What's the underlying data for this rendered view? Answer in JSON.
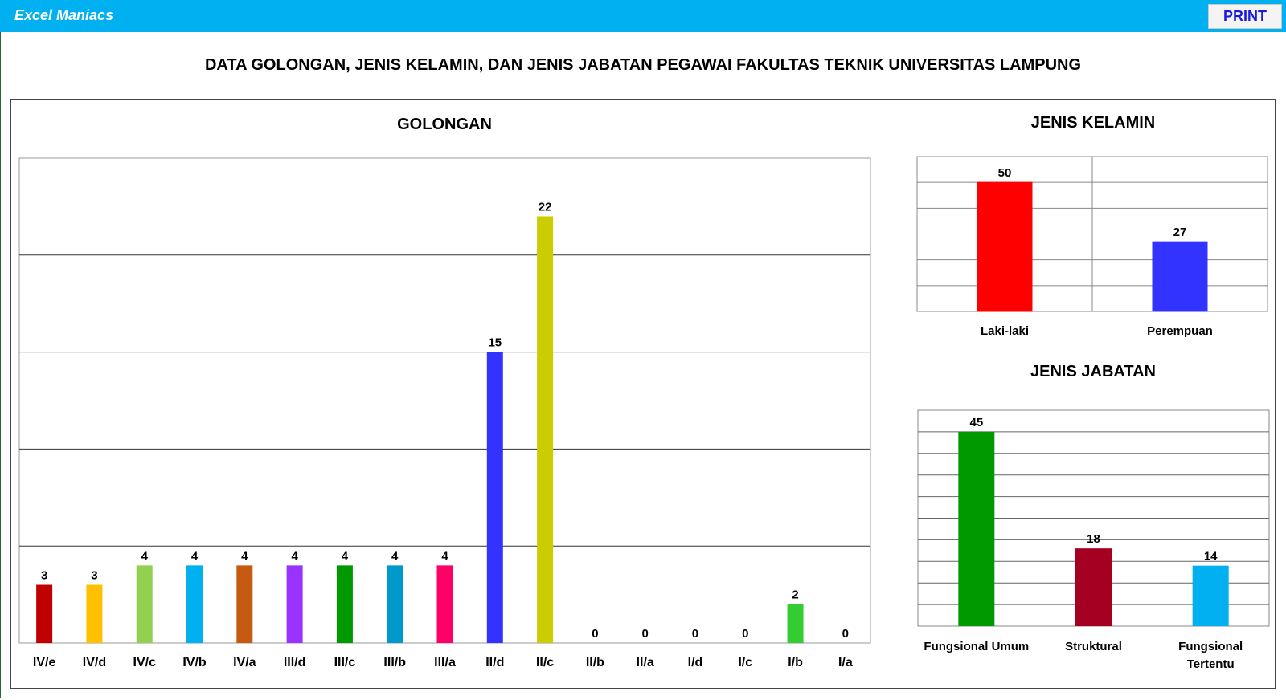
{
  "app": {
    "title": "Excel Maniacs",
    "print_label": "PRINT"
  },
  "page_title": "DATA GOLONGAN, JENIS KELAMIN, DAN JENIS JABATAN PEGAWAI FAKULTAS TEKNIK UNIVERSITAS LAMPUNG",
  "chart_data": [
    {
      "type": "bar",
      "title": "GOLONGAN",
      "categories": [
        "IV/e",
        "IV/d",
        "IV/c",
        "IV/b",
        "IV/a",
        "III/d",
        "III/c",
        "III/b",
        "III/a",
        "II/d",
        "II/c",
        "II/b",
        "II/a",
        "I/d",
        "I/c",
        "I/b",
        "I/a"
      ],
      "values": [
        3,
        3,
        4,
        4,
        4,
        4,
        4,
        4,
        4,
        15,
        22,
        0,
        0,
        0,
        0,
        2,
        0
      ],
      "colors": [
        "#c00000",
        "#ffc000",
        "#92d050",
        "#00b0f0",
        "#c55a11",
        "#9933ff",
        "#009900",
        "#0099cc",
        "#ff0066",
        "#3333ff",
        "#cccc00",
        "#888888",
        "#888888",
        "#888888",
        "#888888",
        "#33cc33",
        "#888888"
      ],
      "ylim": [
        0,
        25
      ],
      "grid": true,
      "legend": "none"
    },
    {
      "type": "bar",
      "title": "JENIS KELAMIN",
      "categories": [
        "Laki-laki",
        "Perempuan"
      ],
      "values": [
        50,
        27
      ],
      "colors": [
        "#ff0000",
        "#3333ff"
      ],
      "ylim": [
        0,
        60
      ],
      "grid": true,
      "legend": "none"
    },
    {
      "type": "bar",
      "title": "JENIS JABATAN",
      "categories": [
        "Fungsional Umum",
        "Struktural",
        "Fungsional Tertentu"
      ],
      "values": [
        45,
        18,
        14
      ],
      "colors": [
        "#009900",
        "#a50021",
        "#00b0f0"
      ],
      "ylim": [
        0,
        50
      ],
      "grid": true,
      "legend": "none"
    }
  ]
}
